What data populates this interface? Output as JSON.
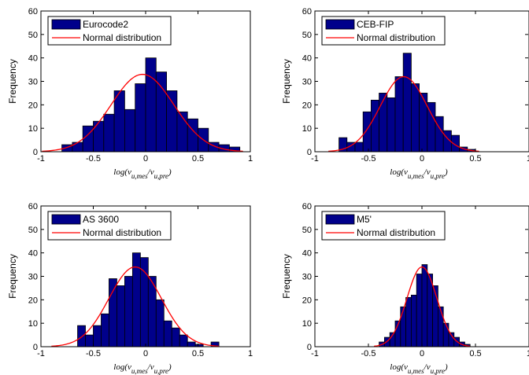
{
  "chart_data": [
    {
      "type": "bar",
      "legend_placement": "top-left",
      "legend": [
        "Eurocode2",
        "Normal distribution"
      ],
      "ylabel": "Frequency",
      "xlabel": {
        "base": "log(v",
        "num_sub": "u,mes",
        "sep": "/v",
        "den_sub": "u,pre",
        "close": ")"
      },
      "xlim": [
        -1,
        1
      ],
      "ylim": [
        0,
        60
      ],
      "xticks": [
        "-1",
        "-0.5",
        "0",
        "0.5",
        "1"
      ],
      "yticks": [
        "0",
        "10",
        "20",
        "30",
        "40",
        "50",
        "60"
      ],
      "bin_edges": [
        -0.9,
        -0.8,
        -0.7,
        -0.6,
        -0.5,
        -0.4,
        -0.3,
        -0.2,
        -0.1,
        0,
        0.1,
        0.2,
        0.3,
        0.4,
        0.5,
        0.6,
        0.7,
        0.8
      ],
      "values": [
        0,
        3,
        4,
        11,
        13,
        16,
        26,
        18,
        29,
        40,
        34,
        26,
        17,
        14,
        10,
        4,
        3,
        2
      ],
      "normal_fit": {
        "mu": -0.03,
        "sigma": 0.3,
        "peak": 33
      },
      "colors": {
        "bar": "#00008B",
        "bar_edge": "#000000",
        "curve": "#FF0000"
      }
    },
    {
      "type": "bar",
      "legend_placement": "top-left",
      "legend": [
        "CEB-FIP",
        "Normal distribution"
      ],
      "ylabel": "Frequency",
      "xlabel": {
        "base": "log(v",
        "num_sub": "u,mes",
        "sep": "/v",
        "den_sub": "u,pre",
        "close": ")"
      },
      "xlim": [
        -1,
        1
      ],
      "ylim": [
        0,
        60
      ],
      "xticks": [
        "-1",
        "-0.5",
        "0",
        "0.5",
        "1"
      ],
      "yticks": [
        "0",
        "10",
        "20",
        "30",
        "40",
        "50",
        "60"
      ],
      "bin_edges": [
        -0.775,
        -0.7,
        -0.625,
        -0.55,
        -0.475,
        -0.4,
        -0.325,
        -0.25,
        -0.175,
        -0.1,
        -0.025,
        0.05,
        0.125,
        0.2,
        0.275,
        0.35,
        0.425
      ],
      "values": [
        6,
        4,
        4,
        17,
        22,
        25,
        23,
        32,
        42,
        29,
        25,
        21,
        15,
        9,
        7,
        2,
        1
      ],
      "normal_fit": {
        "mu": -0.17,
        "sigma": 0.22,
        "peak": 32
      },
      "colors": {
        "bar": "#00008B",
        "bar_edge": "#000000",
        "curve": "#FF0000"
      }
    },
    {
      "type": "bar",
      "legend_placement": "top-left",
      "legend": [
        "AS 3600",
        "Normal distribution"
      ],
      "ylabel": "Frequency",
      "xlabel": {
        "base": "log(v",
        "num_sub": "u,mes",
        "sep": "/v",
        "den_sub": "u,pre",
        "close": ")"
      },
      "xlim": [
        -1,
        1
      ],
      "ylim": [
        0,
        60
      ],
      "xticks": [
        "-1",
        "-0.5",
        "0",
        "0.5",
        "1"
      ],
      "yticks": [
        "0",
        "10",
        "20",
        "30",
        "40",
        "50",
        "60"
      ],
      "bin_edges": [
        -0.65,
        -0.575,
        -0.5,
        -0.425,
        -0.35,
        -0.275,
        -0.2,
        -0.125,
        -0.05,
        0.025,
        0.1,
        0.175,
        0.25,
        0.325,
        0.4,
        0.475,
        0.55,
        0.625
      ],
      "values": [
        9,
        5,
        9,
        14,
        29,
        26,
        30,
        40,
        38,
        30,
        20,
        11,
        8,
        5,
        2,
        1,
        0,
        2
      ],
      "normal_fit": {
        "mu": -0.1,
        "sigma": 0.25,
        "peak": 34
      },
      "colors": {
        "bar": "#00008B",
        "bar_edge": "#000000",
        "curve": "#FF0000"
      }
    },
    {
      "type": "bar",
      "legend_placement": "top-left",
      "legend": [
        "M5'",
        "Normal distribution"
      ],
      "ylabel": "Frequency",
      "xlabel": {
        "base": "log(v",
        "num_sub": "u,mes",
        "sep": "/v",
        "den_sub": "u,pre",
        "close": ")"
      },
      "xlim": [
        -1,
        1
      ],
      "ylim": [
        0,
        60
      ],
      "xticks": [
        "-1",
        "-0.5",
        "0",
        "0.5",
        "1"
      ],
      "yticks": [
        "0",
        "10",
        "20",
        "30",
        "40",
        "50",
        "60"
      ],
      "bin_edges": [
        -0.45,
        -0.4,
        -0.35,
        -0.3,
        -0.25,
        -0.2,
        -0.15,
        -0.1,
        -0.05,
        0,
        0.05,
        0.1,
        0.15,
        0.2,
        0.25,
        0.3,
        0.35,
        0.4,
        0.45
      ],
      "values": [
        0,
        2,
        4,
        6,
        11,
        17,
        21,
        22,
        31,
        35,
        31,
        26,
        17,
        10,
        6,
        4,
        2,
        1
      ],
      "normal_fit": {
        "mu": 0.0,
        "sigma": 0.14,
        "peak": 34
      },
      "colors": {
        "bar": "#00008B",
        "bar_edge": "#000000",
        "curve": "#FF0000"
      }
    }
  ]
}
